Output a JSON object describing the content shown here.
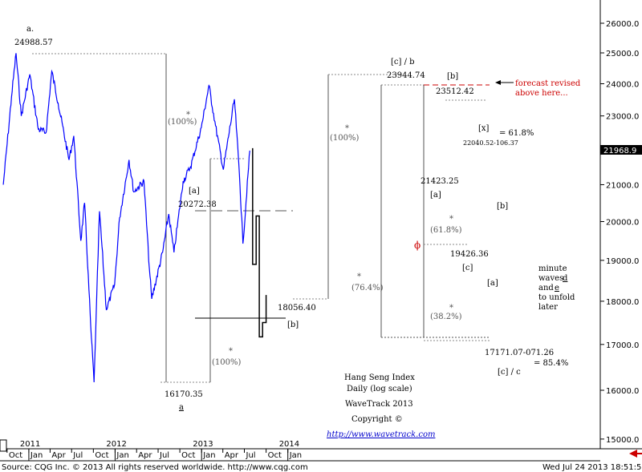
{
  "colors": {
    "price_line": "#0000ff",
    "forecast_line": "#000000",
    "revision_line": "#cc0000",
    "current_price_bg": "#000000",
    "current_price_fg": "#ffffff",
    "guide_line": "#888888"
  },
  "chart_data": {
    "type": "line",
    "title": "Hang Seng Index",
    "subtitle": "Daily (log scale)",
    "ylim": [
      15000,
      26500
    ],
    "y_ticks": [
      "15000.0",
      "16000.0",
      "17000.0",
      "18000.0",
      "19000.0",
      "20000.0",
      "21000.0",
      "22000.0",
      "23000.0",
      "24000.0",
      "25000.0",
      "26000.0"
    ],
    "x_month_labels": [
      "Oct",
      "Jan",
      "Apr",
      "Jul",
      "Oct",
      "Jan",
      "Apr",
      "Jul",
      "Oct",
      "Jan",
      "Apr",
      "Jul",
      "Oct",
      "Jan"
    ],
    "x_year_labels": [
      "2011",
      "2012",
      "2013",
      "2014"
    ],
    "current_price": "21968.9",
    "series": [
      {
        "values": [
          [
            "2010-09-15",
            21000
          ],
          [
            "2010-10-20",
            23600
          ],
          [
            "2010-11-08",
            24988.57
          ],
          [
            "2010-11-30",
            23000
          ],
          [
            "2011-01-05",
            24300
          ],
          [
            "2011-02-10",
            22600
          ],
          [
            "2011-03-15",
            22500
          ],
          [
            "2011-04-08",
            24400
          ],
          [
            "2011-05-05",
            23400
          ],
          [
            "2011-06-20",
            21700
          ],
          [
            "2011-07-10",
            22400
          ],
          [
            "2011-08-09",
            19500
          ],
          [
            "2011-08-25",
            20500
          ],
          [
            "2011-09-20",
            17400
          ],
          [
            "2011-10-04",
            16170.35
          ],
          [
            "2011-10-27",
            20272.38
          ],
          [
            "2011-11-25",
            17800
          ],
          [
            "2011-12-30",
            18400
          ],
          [
            "2012-01-20",
            20100
          ],
          [
            "2012-02-29",
            21700
          ],
          [
            "2012-03-20",
            20800
          ],
          [
            "2012-05-02",
            21100
          ],
          [
            "2012-05-25",
            18800
          ],
          [
            "2012-06-04",
            18056.4
          ],
          [
            "2012-07-20",
            19200
          ],
          [
            "2012-08-15",
            20200
          ],
          [
            "2012-09-06",
            19200
          ],
          [
            "2012-10-15",
            21100
          ],
          [
            "2012-11-15",
            21500
          ],
          [
            "2012-12-31",
            22650
          ],
          [
            "2013-02-01",
            23944.74
          ],
          [
            "2013-03-01",
            22700
          ],
          [
            "2013-04-03",
            21423.25
          ],
          [
            "2013-05-20",
            23512.42
          ],
          [
            "2013-06-10",
            21300
          ],
          [
            "2013-06-25",
            19426.36
          ],
          [
            "2013-07-24",
            21968.9
          ]
        ]
      },
      {
        "name": "forecast",
        "values": [
          [
            "2013-08-05",
            22040
          ],
          [
            "2013-08-05",
            18900
          ],
          [
            "2013-08-20",
            18900
          ],
          [
            "2013-08-20",
            20150
          ],
          [
            "2013-09-02",
            20150
          ],
          [
            "2013-09-02",
            17171
          ],
          [
            "2013-09-16",
            17171
          ],
          [
            "2013-09-16",
            17500
          ],
          [
            "2013-10-01",
            17500
          ],
          [
            "2013-10-01",
            18150
          ]
        ]
      }
    ]
  },
  "annotations": {
    "peak_label": "a.",
    "peak_value": "24988.57",
    "pct_100_a": "(100%)",
    "star_a": "*",
    "low_value": "16170.35",
    "low_label": "a",
    "wave_a_bracket": "[a]",
    "wave_a_value": "20272.38",
    "pct_100_b": "(100%)",
    "star_b": "*",
    "low_value_2": "18056.40",
    "wave_b_bracket": "[b]",
    "pct_100_c": "(100%)",
    "star_c": "*",
    "pct_764": "(76.4%)",
    "star_d": "*",
    "top_label_c": "[c] / b",
    "top_value": "23944.74",
    "wave_b_top": "[b]",
    "wave_b_top_value": "23512.42",
    "forecast_note_1": "forecast revised",
    "forecast_note_2": "above here...",
    "x_label": "[x]",
    "fib_618": "= 61.8%",
    "range_text": "22040.52-106.37",
    "mid_low_value": "21423.25",
    "mid_low_label": "[a]",
    "pct_618": "(61.8%)",
    "star_e": "*",
    "phi": "ϕ",
    "low_3_value": "19426.36",
    "low_3_label": "[c]",
    "pct_382": "(38.2%)",
    "star_f": "*",
    "fc_b": "[b]",
    "fc_a": "[a]",
    "target_value": "17171.07-071.26",
    "target_label": "[c] / c",
    "target_pct": "= 85.4%",
    "minute_note": [
      "minute",
      "waves",
      "and",
      "to unfold",
      "later"
    ],
    "minute_d": "d",
    "minute_e": "e",
    "caption_1": "Hang Seng Index",
    "caption_2": "Daily (log scale)",
    "caption_3": "WaveTrack 2013",
    "caption_4": "Copyright ©",
    "caption_link": "http://www.wavetrack.com"
  },
  "footer": {
    "source": "Source: CQG Inc. © 2013 All rights reserved worldwide. http://www.cqg.com",
    "timestamp": "Wed Jul 24 2013 18:51:52"
  }
}
